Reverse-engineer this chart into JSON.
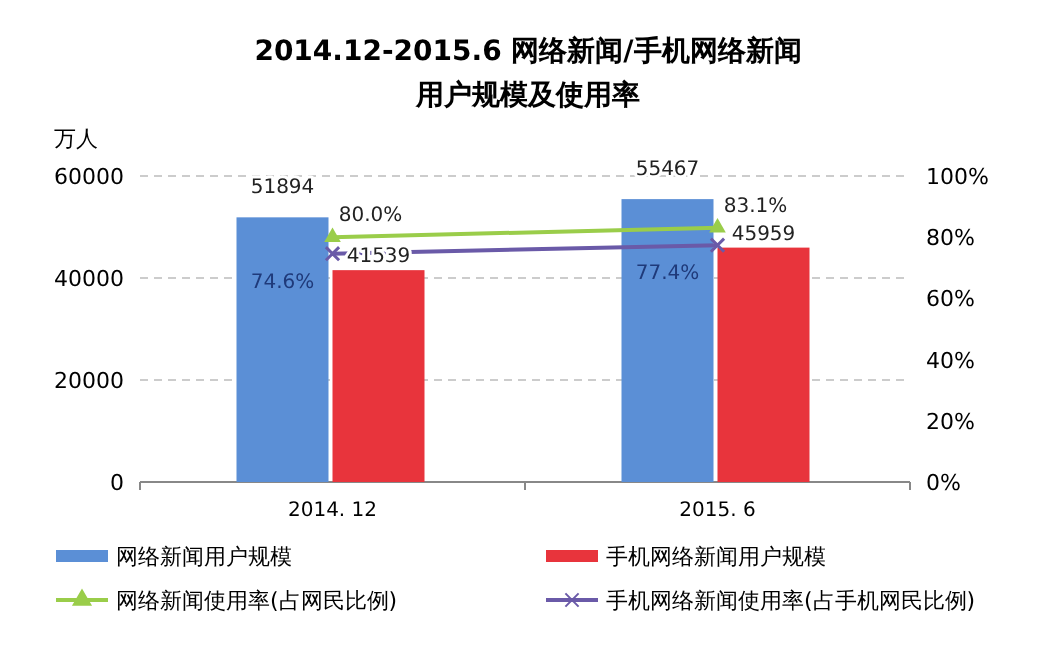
{
  "chart_data": {
    "type": "bar",
    "title": "2014.12-2015.6 网络新闻/手机网络新闻",
    "subtitle": "用户规模及使用率",
    "ylabel": "万人",
    "categories": [
      "2014. 12",
      "2015. 6"
    ],
    "series": [
      {
        "name": "网络新闻用户规模",
        "color": "#5b8fd6",
        "values": [
          51894,
          55467
        ]
      },
      {
        "name": "手机网络新闻用户规模",
        "color": "#e8343c",
        "values": [
          41539,
          45959
        ]
      },
      {
        "name": "网络新闻使用率(占网民比例)",
        "type": "line",
        "axis": "y2",
        "marker": "triangle",
        "color": "#9acd4a",
        "values": [
          80.0,
          83.1
        ],
        "value_labels": [
          "80.0%",
          "83.1%"
        ]
      },
      {
        "name": "手机网络新闻使用率(占手机网民比例)",
        "type": "line",
        "axis": "y2",
        "marker": "cross",
        "color": "#6a5aa8",
        "values": [
          74.6,
          77.4
        ],
        "value_labels": [
          "74.6%",
          "77.4%"
        ]
      }
    ],
    "ylim": [
      0,
      60000
    ],
    "yticks": [
      0,
      20000,
      40000,
      60000
    ],
    "y2lim": [
      0,
      100
    ],
    "y2ticks": [
      {
        "value": 0,
        "label": "0%"
      },
      {
        "value": 20,
        "label": "20%"
      },
      {
        "value": 40,
        "label": "40%"
      },
      {
        "value": 60,
        "label": "60%"
      },
      {
        "value": 80,
        "label": "80%"
      },
      {
        "value": 100,
        "label": "100%"
      }
    ],
    "grid": "y",
    "legend": "bottom",
    "data_labels": true
  }
}
